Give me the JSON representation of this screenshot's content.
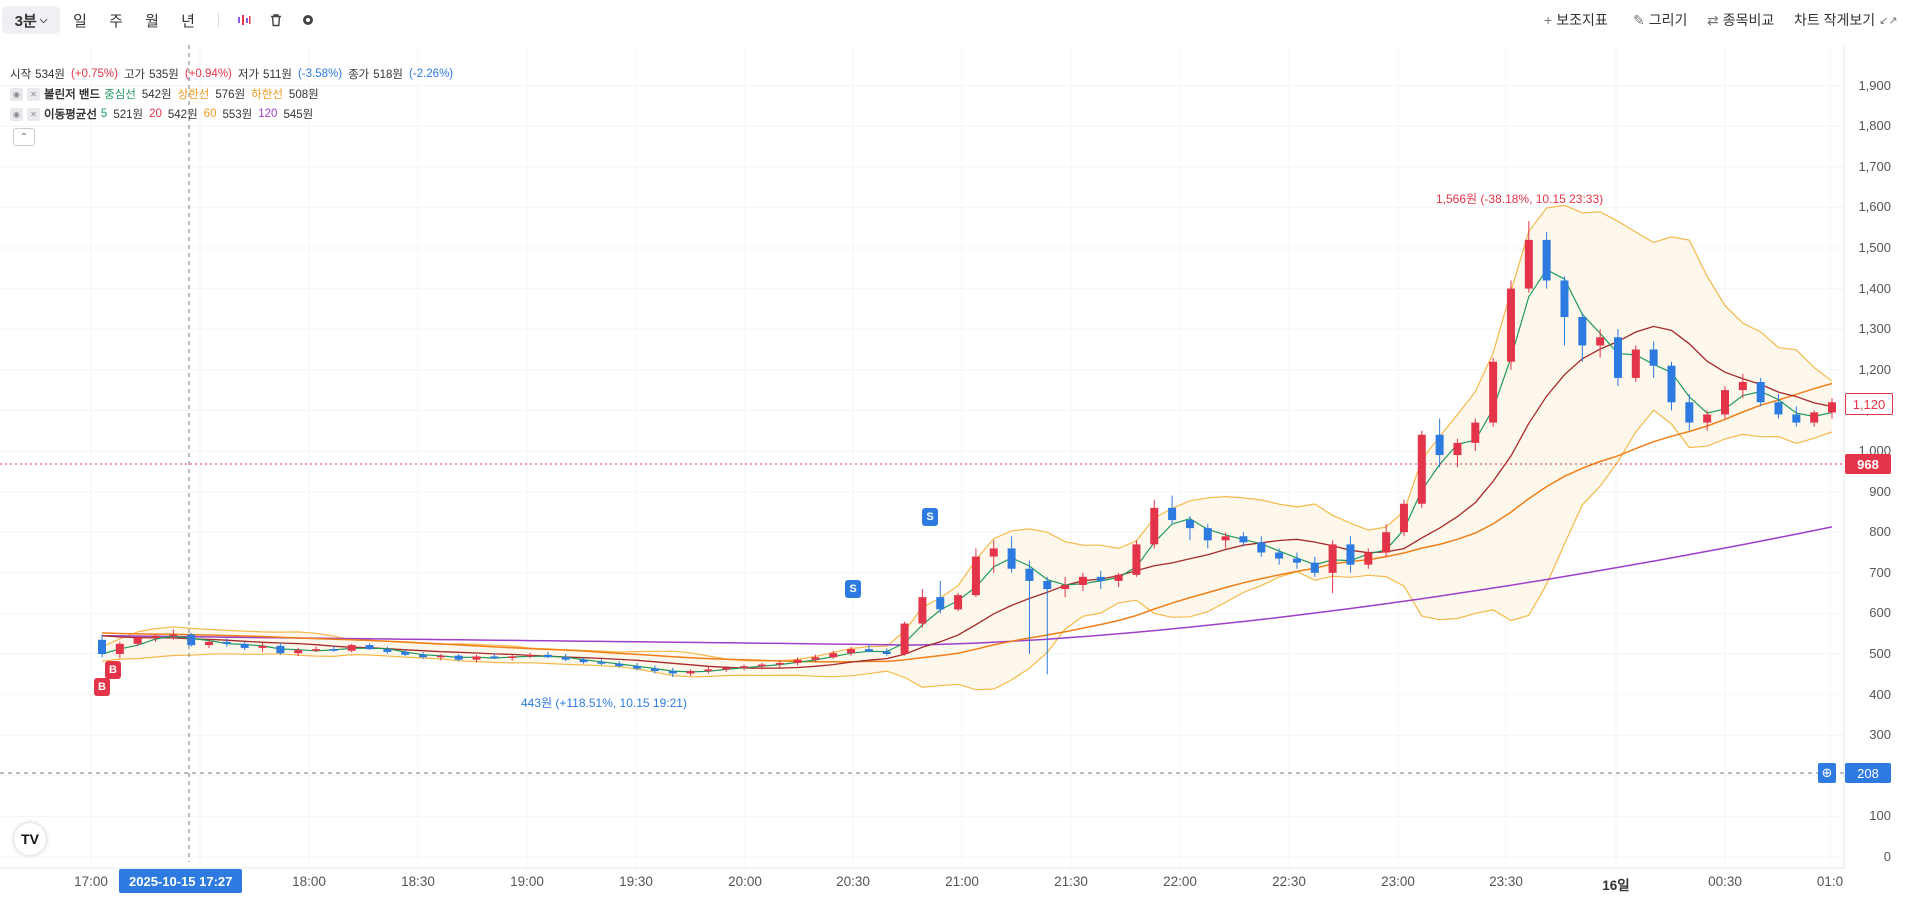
{
  "toolbar": {
    "period": "3분",
    "ranges": [
      "일",
      "주",
      "월",
      "년"
    ],
    "right": {
      "indicators": "보조지표",
      "draw": "그리기",
      "compare": "종목비교",
      "minimize": "차트 작게보기"
    }
  },
  "ohlc": {
    "open_label": "시작",
    "open": "534원",
    "open_pct": "(+0.75%)",
    "high_label": "고가",
    "high": "535원",
    "high_pct": "(+0.94%)",
    "low_label": "저가",
    "low": "511원",
    "low_pct": "(-3.58%)",
    "close_label": "종가",
    "close": "518원",
    "close_pct": "(-2.26%)"
  },
  "bollinger": {
    "name": "볼린저 밴드",
    "mid_label": "중심선",
    "mid": "542원",
    "upper_label": "상한선",
    "upper": "576원",
    "lower_label": "하한선",
    "lower": "508원"
  },
  "ma": {
    "name": "이동평균선",
    "p5": "5",
    "v5": "521원",
    "p20": "20",
    "v20": "542원",
    "p60": "60",
    "v60": "553원",
    "p120": "120",
    "v120": "545원"
  },
  "y_axis": [
    "1,900",
    "1,800",
    "1,700",
    "1,600",
    "1,500",
    "1,400",
    "1,300",
    "1,200",
    "1,100",
    "1,000",
    "900",
    "800",
    "700",
    "600",
    "500",
    "400",
    "300",
    "200",
    "100",
    "0"
  ],
  "x_axis": [
    "17:00",
    "18:00",
    "18:30",
    "19:00",
    "19:30",
    "20:00",
    "20:30",
    "21:00",
    "21:30",
    "22:00",
    "22:30",
    "23:00",
    "23:30",
    "16일",
    "00:30",
    "01:0"
  ],
  "crosshair_time": "2025-10-15   17:27",
  "price_tags": {
    "last": "1,120",
    "ref": "968",
    "cursor": "208"
  },
  "annotations": {
    "high": "1,566원 (-38.18%, 10.15 23:33)",
    "low": "443원 (+118.51%, 10.15 19:21)"
  },
  "signals": {
    "buy": "B",
    "sell": "S"
  },
  "colors": {
    "up": "#e4344a",
    "down": "#2d7ae0",
    "ma5": "#1f9a5c",
    "ma20": "#a52a2a",
    "ma60": "#f07f1a",
    "ma120": "#9c3fc9",
    "band": "#f5b94a"
  },
  "chart_data": {
    "type": "candlestick",
    "ylim": [
      0,
      1950
    ],
    "candles": [
      [
        535,
        548,
        492,
        500
      ],
      [
        500,
        530,
        490,
        525
      ],
      [
        525,
        545,
        520,
        540
      ],
      [
        540,
        548,
        530,
        545
      ],
      [
        545,
        560,
        535,
        548
      ],
      [
        548,
        552,
        518,
        522
      ],
      [
        522,
        535,
        515,
        530
      ],
      [
        530,
        538,
        518,
        525
      ],
      [
        525,
        530,
        510,
        515
      ],
      [
        515,
        528,
        505,
        520
      ],
      [
        520,
        528,
        498,
        502
      ],
      [
        502,
        515,
        495,
        510
      ],
      [
        510,
        518,
        505,
        512
      ],
      [
        512,
        520,
        506,
        508
      ],
      [
        508,
        525,
        504,
        522
      ],
      [
        522,
        526,
        510,
        512
      ],
      [
        512,
        518,
        500,
        505
      ],
      [
        505,
        512,
        495,
        498
      ],
      [
        498,
        505,
        488,
        492
      ],
      [
        492,
        500,
        484,
        496
      ],
      [
        496,
        500,
        482,
        486
      ],
      [
        486,
        498,
        480,
        494
      ],
      [
        494,
        502,
        488,
        490
      ],
      [
        490,
        498,
        484,
        494
      ],
      [
        494,
        503,
        490,
        498
      ],
      [
        498,
        505,
        490,
        492
      ],
      [
        492,
        500,
        482,
        486
      ],
      [
        486,
        492,
        476,
        480
      ],
      [
        480,
        488,
        472,
        476
      ],
      [
        476,
        482,
        466,
        470
      ],
      [
        470,
        478,
        460,
        464
      ],
      [
        464,
        472,
        452,
        458
      ],
      [
        458,
        466,
        443,
        452
      ],
      [
        452,
        462,
        446,
        458
      ],
      [
        458,
        468,
        452,
        462
      ],
      [
        462,
        470,
        456,
        466
      ],
      [
        466,
        474,
        460,
        470
      ],
      [
        470,
        478,
        462,
        474
      ],
      [
        474,
        484,
        466,
        478
      ],
      [
        478,
        492,
        472,
        486
      ],
      [
        486,
        498,
        480,
        492
      ],
      [
        492,
        508,
        488,
        502
      ],
      [
        502,
        518,
        496,
        512
      ],
      [
        512,
        524,
        504,
        506
      ],
      [
        506,
        514,
        496,
        500
      ],
      [
        500,
        580,
        496,
        575
      ],
      [
        575,
        660,
        565,
        640
      ],
      [
        640,
        680,
        600,
        610
      ],
      [
        610,
        650,
        605,
        645
      ],
      [
        645,
        760,
        640,
        740
      ],
      [
        740,
        780,
        700,
        760
      ],
      [
        760,
        790,
        700,
        710
      ],
      [
        710,
        730,
        500,
        680
      ],
      [
        680,
        690,
        450,
        660
      ],
      [
        660,
        690,
        640,
        670
      ],
      [
        670,
        700,
        655,
        690
      ],
      [
        690,
        705,
        660,
        680
      ],
      [
        680,
        700,
        665,
        695
      ],
      [
        695,
        780,
        690,
        770
      ],
      [
        770,
        880,
        760,
        860
      ],
      [
        860,
        890,
        820,
        830
      ],
      [
        830,
        840,
        780,
        810
      ],
      [
        810,
        820,
        760,
        780
      ],
      [
        780,
        800,
        760,
        790
      ],
      [
        790,
        800,
        765,
        775
      ],
      [
        775,
        790,
        740,
        750
      ],
      [
        750,
        760,
        720,
        735
      ],
      [
        735,
        750,
        710,
        725
      ],
      [
        725,
        740,
        690,
        700
      ],
      [
        700,
        780,
        650,
        770
      ],
      [
        770,
        790,
        700,
        720
      ],
      [
        720,
        760,
        710,
        750
      ],
      [
        750,
        820,
        740,
        800
      ],
      [
        800,
        880,
        790,
        870
      ],
      [
        870,
        1050,
        860,
        1040
      ],
      [
        1040,
        1080,
        960,
        990
      ],
      [
        990,
        1030,
        960,
        1020
      ],
      [
        1020,
        1080,
        1000,
        1070
      ],
      [
        1070,
        1230,
        1060,
        1220
      ],
      [
        1220,
        1420,
        1200,
        1400
      ],
      [
        1400,
        1566,
        1390,
        1520
      ],
      [
        1520,
        1540,
        1400,
        1420
      ],
      [
        1420,
        1430,
        1260,
        1330
      ],
      [
        1330,
        1340,
        1220,
        1260
      ],
      [
        1260,
        1300,
        1230,
        1280
      ],
      [
        1280,
        1300,
        1160,
        1180
      ],
      [
        1180,
        1260,
        1170,
        1250
      ],
      [
        1250,
        1270,
        1180,
        1210
      ],
      [
        1210,
        1220,
        1100,
        1120
      ],
      [
        1120,
        1140,
        1050,
        1070
      ],
      [
        1070,
        1100,
        1050,
        1090
      ],
      [
        1090,
        1160,
        1080,
        1150
      ],
      [
        1150,
        1190,
        1130,
        1170
      ],
      [
        1170,
        1180,
        1110,
        1120
      ],
      [
        1120,
        1140,
        1080,
        1090
      ],
      [
        1090,
        1110,
        1060,
        1070
      ],
      [
        1070,
        1100,
        1060,
        1095
      ],
      [
        1095,
        1130,
        1080,
        1120
      ]
    ]
  }
}
